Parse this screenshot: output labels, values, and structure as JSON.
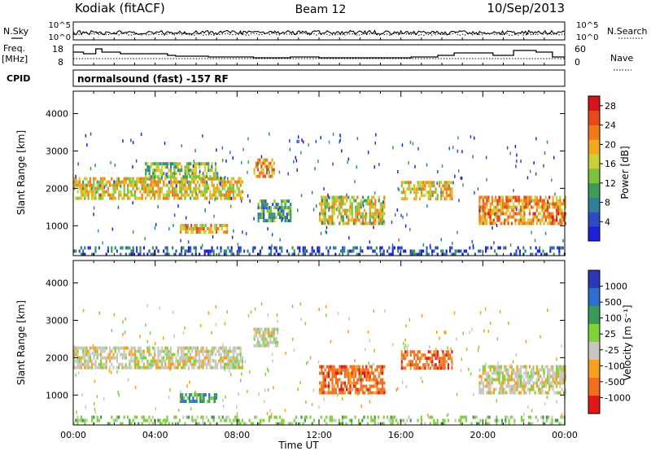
{
  "header": {
    "title_left": "Kodiak (fitACF)",
    "title_center": "Beam 12",
    "title_right": "10/Sep/2013"
  },
  "top_panel": {
    "left_label": "N.Sky",
    "right_label": "N.Search",
    "left_ticks": [
      "10^5",
      "10^0"
    ],
    "right_ticks": [
      "10^5",
      "10^0"
    ]
  },
  "freq_panel": {
    "left_label_1": "Freq.",
    "left_label_2": "[MHz]",
    "left_ticks": [
      "18",
      "8"
    ],
    "right_label": "Nave",
    "right_ticks": [
      "60",
      "0"
    ]
  },
  "cpid": {
    "label": "CPID",
    "text": "normalsound (fast) -157 RF"
  },
  "chart_data": [
    {
      "type": "heatmap",
      "title": "",
      "xlabel": "",
      "ylabel": "Slant Range [km]",
      "x_ticks": [
        "00:00",
        "04:00",
        "08:00",
        "12:00",
        "16:00",
        "20:00",
        "00:00"
      ],
      "y_ticks": [
        1000,
        2000,
        3000,
        4000
      ],
      "ylim": [
        200,
        4600
      ],
      "colorbar": {
        "label": "Power [dB]",
        "ticks": [
          4,
          8,
          12,
          16,
          20,
          24,
          28
        ],
        "range": [
          0,
          30
        ],
        "colors": [
          "#1f1fd8",
          "#2d4cc4",
          "#2e7f9b",
          "#3d9a5a",
          "#7cc23c",
          "#c9d13a",
          "#f0a81f",
          "#f07a1a",
          "#e8481a",
          "#d8141a"
        ]
      },
      "echo_regions": [
        {
          "t_start": 0.0,
          "t_end": 8.3,
          "range_start": 1750,
          "range_end": 2300,
          "value": 18
        },
        {
          "t_start": 3.5,
          "t_end": 7.0,
          "range_start": 2300,
          "range_end": 2700,
          "value": 14
        },
        {
          "t_start": 5.2,
          "t_end": 7.5,
          "range_start": 850,
          "range_end": 1050,
          "value": 20
        },
        {
          "t_start": 8.8,
          "t_end": 9.8,
          "range_start": 2300,
          "range_end": 2800,
          "value": 22
        },
        {
          "t_start": 9.0,
          "t_end": 10.6,
          "range_start": 1100,
          "range_end": 1700,
          "value": 10
        },
        {
          "t_start": 12.0,
          "t_end": 15.2,
          "range_start": 1100,
          "range_end": 1800,
          "value": 16
        },
        {
          "t_start": 16.0,
          "t_end": 18.5,
          "range_start": 1700,
          "range_end": 2200,
          "value": 18
        },
        {
          "t_start": 19.8,
          "t_end": 24.0,
          "range_start": 1100,
          "range_end": 1800,
          "value": 22
        },
        {
          "t_start": 0.0,
          "t_end": 24.0,
          "range_start": 250,
          "range_end": 450,
          "value": 4
        }
      ]
    },
    {
      "type": "heatmap",
      "title": "",
      "xlabel": "Time UT",
      "ylabel": "Slant Range [km]",
      "x_ticks": [
        "00:00",
        "04:00",
        "08:00",
        "12:00",
        "16:00",
        "20:00",
        "00:00"
      ],
      "y_ticks": [
        1000,
        2000,
        3000,
        4000
      ],
      "ylim": [
        200,
        4600
      ],
      "colorbar": {
        "label": "Velocity [m s⁻¹]",
        "ticks": [
          "1000",
          "500",
          "100",
          "25",
          "-25",
          "-100",
          "-500",
          "-1000"
        ],
        "range": [
          -1000,
          1000
        ],
        "colors": [
          "#2b38b8",
          "#2e6ed0",
          "#3a9a5a",
          "#7ed23a",
          "#c8c8c0",
          "#f5a020",
          "#f07020",
          "#e01818"
        ]
      },
      "echo_regions": [
        {
          "t_start": 0.0,
          "t_end": 8.3,
          "range_start": 1750,
          "range_end": 2300,
          "value": 0
        },
        {
          "t_start": 5.2,
          "t_end": 7.0,
          "range_start": 850,
          "range_end": 1050,
          "value": 150
        },
        {
          "t_start": 8.8,
          "t_end": 10.0,
          "range_start": 2300,
          "range_end": 2800,
          "value": 0
        },
        {
          "t_start": 12.0,
          "t_end": 15.2,
          "range_start": 1100,
          "range_end": 1800,
          "value": -300
        },
        {
          "t_start": 16.0,
          "t_end": 18.5,
          "range_start": 1700,
          "range_end": 2200,
          "value": -400
        },
        {
          "t_start": 19.8,
          "t_end": 24.0,
          "range_start": 1100,
          "range_end": 1800,
          "value": 0
        },
        {
          "t_start": 0.0,
          "t_end": 24.0,
          "range_start": 250,
          "range_end": 450,
          "value": 60
        }
      ]
    }
  ],
  "x_axis_title": "Time UT"
}
